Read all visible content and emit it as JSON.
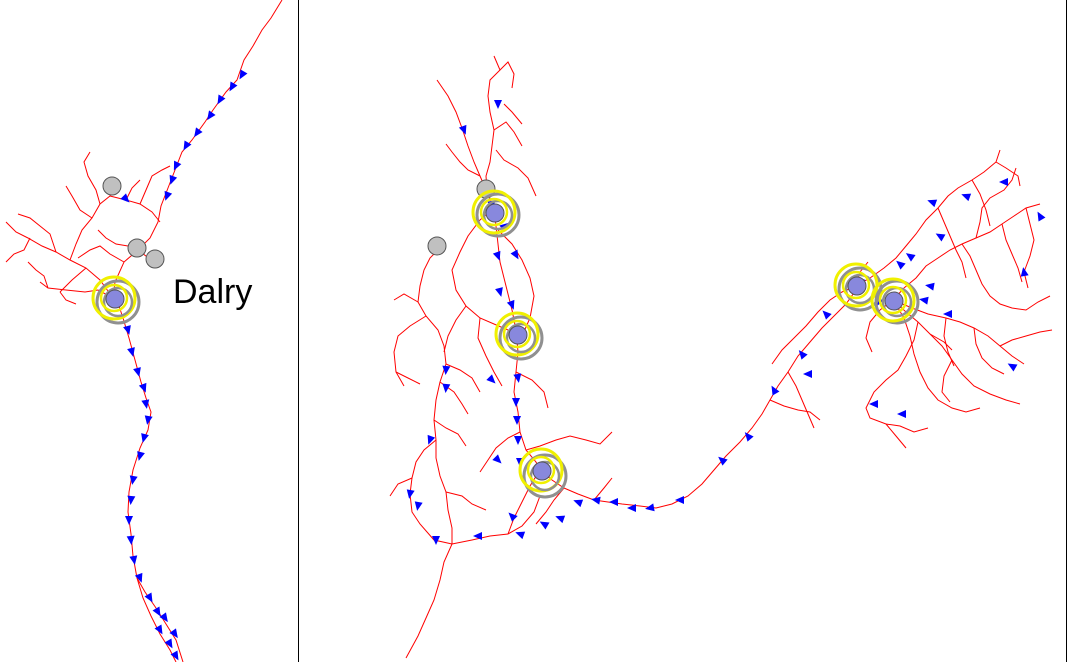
{
  "map": {
    "town_label": "Dalry",
    "colors": {
      "line": "#ff0000",
      "arrow": "#0000ff",
      "node_grey": "#c0c0c0",
      "node_blue": "#8888dd",
      "ring_yellow": "#f0f000",
      "ring_grey": "#909090",
      "divider": "#000000"
    },
    "panels": [
      "left-panel",
      "right-panel"
    ],
    "icons": [
      "flow-arrow-icon",
      "grey-node-icon",
      "highlighted-node-icon"
    ]
  }
}
